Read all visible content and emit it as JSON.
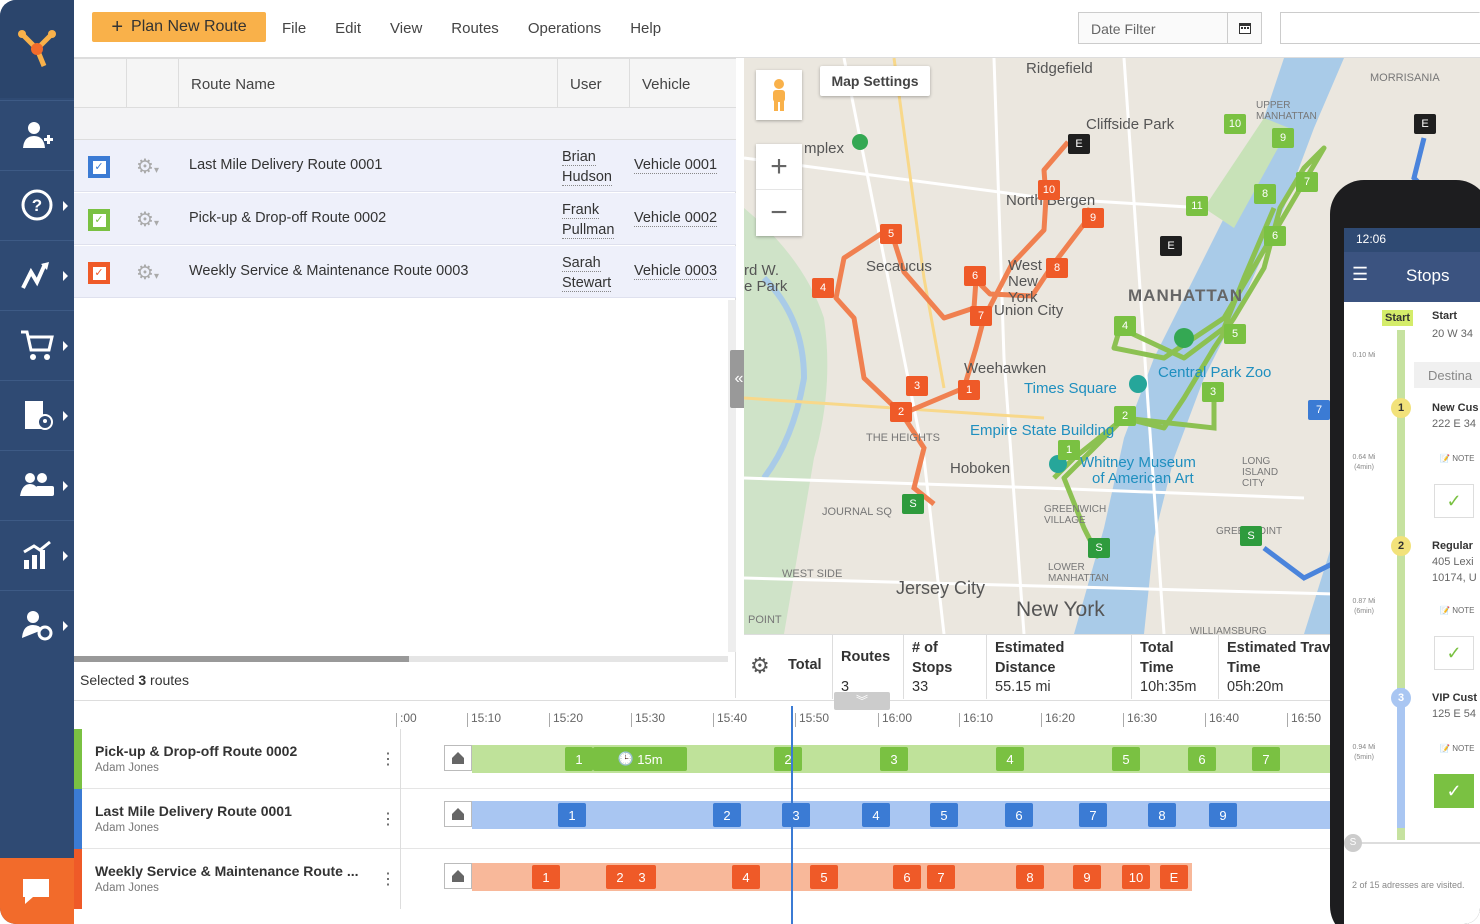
{
  "topbar": {
    "plan_button": "Plan New Route",
    "menu": [
      "File",
      "Edit",
      "View",
      "Routes",
      "Operations",
      "Help"
    ],
    "date_filter_placeholder": "Date Filter"
  },
  "table": {
    "headers": {
      "route_name": "Route Name",
      "user": "User",
      "vehicle": "Vehicle"
    },
    "rows": [
      {
        "name": "Last Mile Delivery Route 0001",
        "user_first": "Brian",
        "user_last": "Hudson",
        "vehicle": "Vehicle 0001",
        "color": "#3b7bd4"
      },
      {
        "name": "Pick-up & Drop-off Route 0002",
        "user_first": "Frank",
        "user_last": "Pullman",
        "vehicle": "Vehicle 0002",
        "color": "#7ac142"
      },
      {
        "name": "Weekly Service & Maintenance Route 0003",
        "user_first": "Sarah",
        "user_last": "Stewart",
        "vehicle": "Vehicle 0003",
        "color": "#ef5a28"
      }
    ],
    "selected_prefix": "Selected ",
    "selected_count": "3",
    "selected_suffix": " routes"
  },
  "map": {
    "settings_label": "Map Settings",
    "labels": [
      "Ridgefield",
      "Cliffside Park",
      "North Bergen",
      "Secaucus",
      "West New York",
      "Union City",
      "MANHATTAN",
      "Weehawken",
      "Times Square",
      "Central Park Zoo",
      "Empire State Building",
      "Hoboken",
      "Whitney Museum",
      "of American Art",
      "Jersey City",
      "New York",
      "THE HEIGHTS",
      "JOURNAL SQ",
      "WEST SIDE",
      "GREENWICH VILLAGE",
      "LOWER MANHATTAN",
      "LONG ISLAND CITY",
      "UPPER MANHATTAN",
      "MORRISANIA",
      "mplex",
      "rd W.",
      "e Park",
      "POINT",
      "GREENPOINT",
      "WILLIAMSBURG"
    ]
  },
  "totals": {
    "label": "Total",
    "headers": {
      "routes": "Routes",
      "stops_1": "# of",
      "stops_2": "Stops",
      "dist_1": "Estimated",
      "dist_2": "Distance",
      "time_1": "Total",
      "time_2": "Time",
      "travel_1": "Estimated Trav",
      "travel_2": "Time"
    },
    "values": {
      "routes": "3",
      "stops": "33",
      "distance": "55.15 mi",
      "total_time": "10h:35m",
      "travel_time": "05h:20m"
    }
  },
  "timeline": {
    "ticks": [
      ":00",
      "15:10",
      "15:20",
      "15:30",
      "15:40",
      "15:50",
      "16:00",
      "16:10",
      "16:20",
      "16:30",
      "16:40",
      "16:50"
    ],
    "rows": [
      {
        "name": "Pick-up & Drop-off Route 0002",
        "user": "Adam Jones",
        "color": "#7ac142",
        "bar": "#bfe29a",
        "stops": [
          "1",
          "2",
          "3",
          "4",
          "5",
          "6",
          "7"
        ],
        "wait": "15m"
      },
      {
        "name": "Last Mile Delivery Route 0001",
        "user": "Adam Jones",
        "color": "#3b7bd4",
        "bar": "#a9c6f2",
        "stops": [
          "1",
          "2",
          "3",
          "4",
          "5",
          "6",
          "7",
          "8",
          "9"
        ]
      },
      {
        "name": "Weekly Service & Maintenance Route ...",
        "user": "Adam Jones",
        "color": "#ef5a28",
        "bar": "#f8b89a",
        "stops": [
          "1",
          "2",
          "3",
          "4",
          "5",
          "6",
          "7",
          "8",
          "9",
          "10",
          "E"
        ]
      }
    ]
  },
  "phone": {
    "time": "12:06",
    "title": "Stops",
    "start_badge": "Start",
    "start_title": "Start",
    "start_addr": "20 W 34",
    "dest_header": "Destina",
    "stops": [
      {
        "num": "1",
        "title": "New Cus",
        "addr": "222 E 34",
        "dist": "0.64 Mi",
        "time": "(4min)",
        "note": "NOTE"
      },
      {
        "num": "2",
        "title": "Regular",
        "addr": "405 Lexi",
        "addr2": "10174, U",
        "dist": "0.87 Mi",
        "time": "(6min)",
        "note": "NOTE"
      },
      {
        "num": "3",
        "title": "VIP Cust",
        "addr": "125 E 54",
        "dist": "0.94 Mi",
        "time": "(5min)",
        "note": "NOTE"
      }
    ],
    "first_dist": "0.10 Mi",
    "footer": "2 of 15 adresses are visited.",
    "progress_label": "S"
  },
  "colors": {
    "sidebar": "#2f4a73",
    "accent": "#f9b14a",
    "chat": "#f26b2b"
  }
}
